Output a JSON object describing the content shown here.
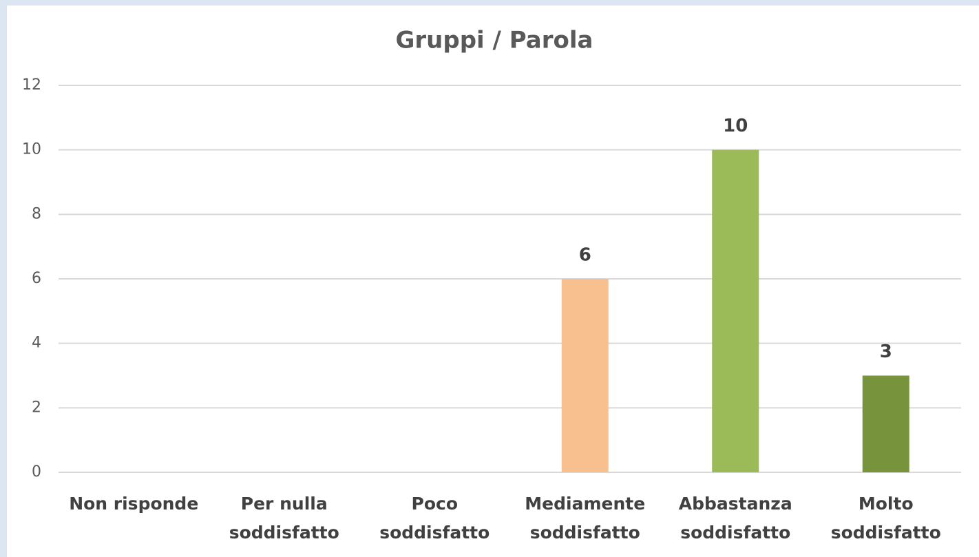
{
  "chart_data": {
    "type": "bar",
    "title": "Gruppi / Parola",
    "categories": [
      "Non risponde",
      "Per nulla soddisfatto",
      "Poco soddisfatto",
      "Mediamente soddisfatto",
      "Abbastanza soddisfatto",
      "Molto soddisfatto"
    ],
    "values": [
      null,
      null,
      null,
      6,
      10,
      3
    ],
    "colors": [
      "#f8bf8f",
      "#f8bf8f",
      "#f8bf8f",
      "#f8bf8f",
      "#9bbb59",
      "#77933c"
    ],
    "ylim": [
      0,
      12
    ],
    "yticks": [
      0,
      2,
      4,
      6,
      8,
      10,
      12
    ],
    "grid": true
  }
}
